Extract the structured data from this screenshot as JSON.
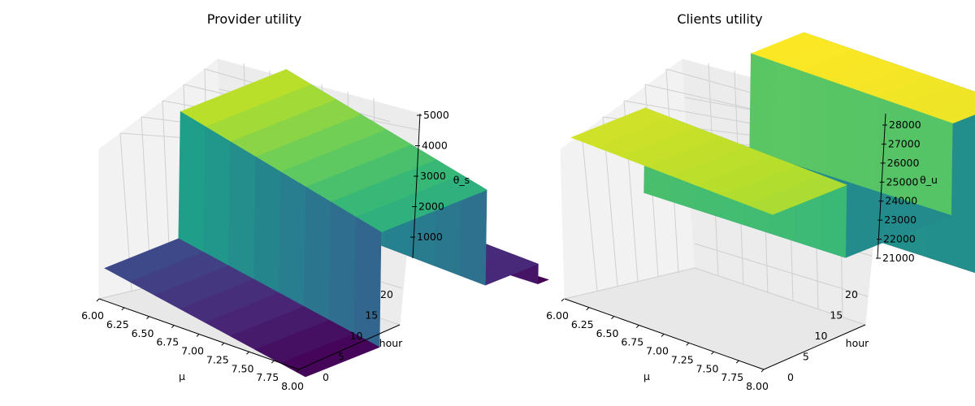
{
  "figure": {
    "background": "#ffffff"
  },
  "chart_data": [
    {
      "type": "surface",
      "title": "Provider utility",
      "xlabel": "μ",
      "ylabel": "hour",
      "zlabel": "θ_s",
      "colormap": "viridis",
      "x_ticks": [
        "6.00",
        "6.25",
        "6.50",
        "6.75",
        "7.00",
        "7.25",
        "7.50",
        "7.75",
        "8.00"
      ],
      "y_ticks": [
        "0",
        "5",
        "10",
        "15",
        "20"
      ],
      "z_ticks": [
        "1000",
        "2000",
        "3000",
        "4000",
        "5000"
      ],
      "xlim": [
        6.0,
        8.0
      ],
      "ylim": [
        0,
        23
      ],
      "zlim": [
        300,
        5000
      ],
      "hour_breaks": [
        7,
        17,
        22
      ],
      "surfaces": [
        {
          "name": "hours 0-7",
          "z_at_mu_min": 1400,
          "z_at_mu_max": 300
        },
        {
          "name": "hours 7-17",
          "z_at_mu_min": 4600,
          "z_at_mu_max": 3200
        },
        {
          "name": "hours 17-22",
          "z_at_mu_min": 1100,
          "z_at_mu_max": 800
        },
        {
          "name": "hours 22-23",
          "z_at_mu_min": 300,
          "z_at_mu_max": 300
        }
      ]
    },
    {
      "type": "surface",
      "title": "Clients utility",
      "xlabel": "μ",
      "ylabel": "hour",
      "zlabel": "θ_u",
      "colormap": "viridis",
      "x_ticks": [
        "6.00",
        "6.25",
        "6.50",
        "6.75",
        "7.00",
        "7.25",
        "7.50",
        "7.75",
        "8.00"
      ],
      "y_ticks": [
        "0",
        "5",
        "10",
        "15",
        "20"
      ],
      "z_ticks": [
        "21000",
        "22000",
        "23000",
        "24000",
        "25000",
        "26000",
        "27000",
        "28000"
      ],
      "xlim": [
        6.0,
        8.0
      ],
      "ylim": [
        0,
        23
      ],
      "zlim": [
        20800,
        28500
      ],
      "hour_breaks": [
        7,
        17,
        22
      ],
      "surfaces": [
        {
          "name": "hours 0-7",
          "z_at_mu_min": 28000,
          "z_at_mu_max": 27500
        },
        {
          "name": "hours 7-17",
          "z_at_mu_min": 24500,
          "z_at_mu_max": 24500
        },
        {
          "name": "hours 17-22",
          "z_at_mu_min": 28500,
          "z_at_mu_max": 28300
        },
        {
          "name": "hours 22-23",
          "z_at_mu_min": 20900,
          "z_at_mu_max": 20900
        }
      ]
    }
  ]
}
